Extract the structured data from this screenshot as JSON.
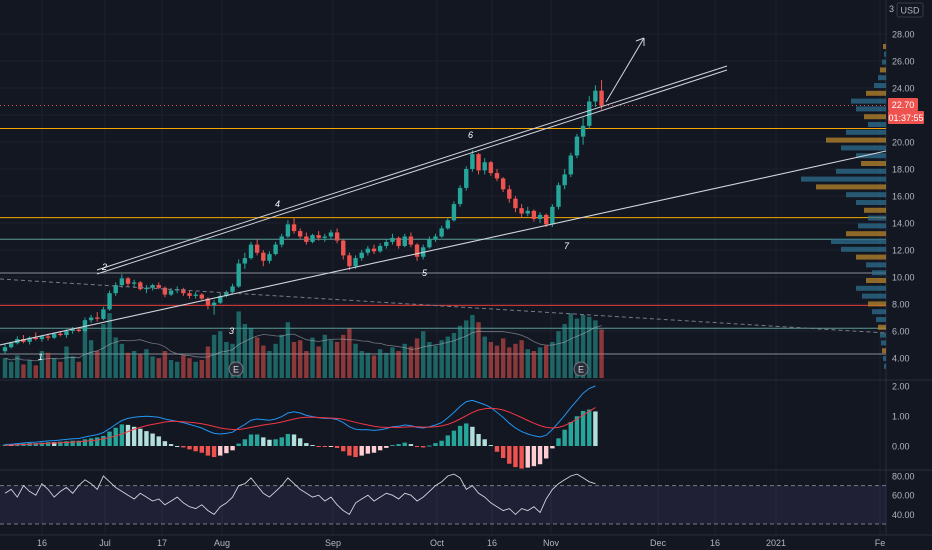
{
  "currency": "USD",
  "price_axis_top_label": "3",
  "price_ticks": [
    "28.00",
    "26.00",
    "24.00",
    "22.00",
    "20.00",
    "18.00",
    "16.00",
    "14.00",
    "12.00",
    "10.00",
    "8.00",
    "6.00",
    "4.00"
  ],
  "price_tick_values": [
    28,
    26,
    24,
    22,
    20,
    18,
    16,
    14,
    12,
    10,
    8,
    6,
    4
  ],
  "macd_ticks": [
    "2.00",
    "1.00",
    "0.00"
  ],
  "macd_tick_values": [
    2,
    1,
    0
  ],
  "rsi_ticks": [
    "80.00",
    "60.00",
    "40.00"
  ],
  "rsi_tick_values": [
    80,
    60,
    40
  ],
  "time_ticks": [
    "16",
    "Jul",
    "17",
    "Aug",
    "Sep",
    "Oct",
    "16",
    "Nov",
    "Dec",
    "16",
    "2021",
    "Fe"
  ],
  "last_price_label": "22.70",
  "countdown_label": "01:37:55",
  "wave_labels": [
    "1",
    "2",
    "3",
    "4",
    "5",
    "6",
    "7"
  ],
  "earnings_marker": "E",
  "colors": {
    "background": "#131722",
    "up": "#26a69a",
    "down": "#ef5350",
    "orange_level": "#f7a600",
    "red_level": "#e53935",
    "macd_line": "#2196f3",
    "signal_line": "#f23645",
    "rsi_band": "#7e57c2"
  },
  "chart_data": {
    "type": "candlestick",
    "y_range": [
      3.2,
      29.4
    ],
    "horizontal_levels": [
      21.0,
      14.4,
      12.8,
      10.3,
      7.9,
      6.2,
      4.3
    ],
    "last_price": 22.7,
    "candles": [
      {
        "o": 4.5,
        "h": 5.0,
        "l": 4.3,
        "c": 4.8
      },
      {
        "o": 4.8,
        "h": 5.2,
        "l": 4.7,
        "c": 5.1
      },
      {
        "o": 5.1,
        "h": 5.6,
        "l": 5.0,
        "c": 5.4
      },
      {
        "o": 5.4,
        "h": 5.7,
        "l": 5.1,
        "c": 5.2
      },
      {
        "o": 5.2,
        "h": 5.6,
        "l": 5.0,
        "c": 5.5
      },
      {
        "o": 5.5,
        "h": 5.9,
        "l": 5.3,
        "c": 5.4
      },
      {
        "o": 5.4,
        "h": 5.7,
        "l": 5.2,
        "c": 5.6
      },
      {
        "o": 5.6,
        "h": 5.8,
        "l": 5.3,
        "c": 5.5
      },
      {
        "o": 5.5,
        "h": 5.9,
        "l": 5.4,
        "c": 5.8
      },
      {
        "o": 5.8,
        "h": 6.0,
        "l": 5.6,
        "c": 5.7
      },
      {
        "o": 5.7,
        "h": 6.1,
        "l": 5.5,
        "c": 6.0
      },
      {
        "o": 6.0,
        "h": 6.3,
        "l": 5.8,
        "c": 6.1
      },
      {
        "o": 6.1,
        "h": 6.3,
        "l": 5.9,
        "c": 6.0
      },
      {
        "o": 6.0,
        "h": 7.0,
        "l": 5.9,
        "c": 6.8
      },
      {
        "o": 6.8,
        "h": 7.2,
        "l": 6.6,
        "c": 7.0
      },
      {
        "o": 7.0,
        "h": 7.4,
        "l": 6.7,
        "c": 6.9
      },
      {
        "o": 6.9,
        "h": 7.8,
        "l": 6.8,
        "c": 7.6
      },
      {
        "o": 7.6,
        "h": 9.0,
        "l": 7.5,
        "c": 8.8
      },
      {
        "o": 8.8,
        "h": 9.6,
        "l": 8.6,
        "c": 9.4
      },
      {
        "o": 9.4,
        "h": 10.2,
        "l": 9.2,
        "c": 9.9
      },
      {
        "o": 9.9,
        "h": 10.0,
        "l": 9.3,
        "c": 9.5
      },
      {
        "o": 9.5,
        "h": 9.8,
        "l": 9.2,
        "c": 9.6
      },
      {
        "o": 9.6,
        "h": 9.7,
        "l": 9.0,
        "c": 9.1
      },
      {
        "o": 9.1,
        "h": 9.4,
        "l": 8.8,
        "c": 9.2
      },
      {
        "o": 9.2,
        "h": 9.5,
        "l": 9.0,
        "c": 9.4
      },
      {
        "o": 9.4,
        "h": 9.6,
        "l": 9.1,
        "c": 9.2
      },
      {
        "o": 9.2,
        "h": 9.3,
        "l": 8.5,
        "c": 8.7
      },
      {
        "o": 8.7,
        "h": 9.2,
        "l": 8.6,
        "c": 9.0
      },
      {
        "o": 9.0,
        "h": 9.3,
        "l": 8.8,
        "c": 9.1
      },
      {
        "o": 9.1,
        "h": 9.2,
        "l": 8.6,
        "c": 8.8
      },
      {
        "o": 8.8,
        "h": 9.0,
        "l": 8.4,
        "c": 8.6
      },
      {
        "o": 8.6,
        "h": 8.9,
        "l": 8.4,
        "c": 8.7
      },
      {
        "o": 8.7,
        "h": 8.8,
        "l": 8.3,
        "c": 8.4
      },
      {
        "o": 8.4,
        "h": 8.5,
        "l": 7.6,
        "c": 7.9
      },
      {
        "o": 7.9,
        "h": 8.3,
        "l": 7.2,
        "c": 8.1
      },
      {
        "o": 8.1,
        "h": 8.8,
        "l": 8.0,
        "c": 8.6
      },
      {
        "o": 8.6,
        "h": 9.0,
        "l": 8.5,
        "c": 8.9
      },
      {
        "o": 8.9,
        "h": 9.5,
        "l": 8.8,
        "c": 9.3
      },
      {
        "o": 9.3,
        "h": 11.3,
        "l": 9.2,
        "c": 11.0
      },
      {
        "o": 11.0,
        "h": 11.8,
        "l": 10.6,
        "c": 11.4
      },
      {
        "o": 11.4,
        "h": 12.6,
        "l": 11.3,
        "c": 12.4
      },
      {
        "o": 12.4,
        "h": 12.8,
        "l": 11.6,
        "c": 11.8
      },
      {
        "o": 11.8,
        "h": 12.0,
        "l": 10.8,
        "c": 11.2
      },
      {
        "o": 11.2,
        "h": 11.9,
        "l": 11.0,
        "c": 11.7
      },
      {
        "o": 11.7,
        "h": 12.6,
        "l": 11.6,
        "c": 12.4
      },
      {
        "o": 12.4,
        "h": 13.2,
        "l": 12.2,
        "c": 13.0
      },
      {
        "o": 13.0,
        "h": 14.2,
        "l": 12.9,
        "c": 13.9
      },
      {
        "o": 13.9,
        "h": 14.4,
        "l": 13.2,
        "c": 13.4
      },
      {
        "o": 13.4,
        "h": 13.6,
        "l": 12.8,
        "c": 13.0
      },
      {
        "o": 13.0,
        "h": 13.3,
        "l": 12.4,
        "c": 12.6
      },
      {
        "o": 12.6,
        "h": 13.2,
        "l": 12.5,
        "c": 13.1
      },
      {
        "o": 13.1,
        "h": 13.4,
        "l": 12.7,
        "c": 12.9
      },
      {
        "o": 12.9,
        "h": 13.2,
        "l": 12.6,
        "c": 13.0
      },
      {
        "o": 13.0,
        "h": 13.5,
        "l": 12.8,
        "c": 13.3
      },
      {
        "o": 13.3,
        "h": 13.6,
        "l": 12.5,
        "c": 12.7
      },
      {
        "o": 12.7,
        "h": 12.8,
        "l": 11.3,
        "c": 11.6
      },
      {
        "o": 11.6,
        "h": 11.8,
        "l": 10.5,
        "c": 10.8
      },
      {
        "o": 10.8,
        "h": 11.6,
        "l": 10.6,
        "c": 11.4
      },
      {
        "o": 11.4,
        "h": 12.0,
        "l": 11.2,
        "c": 11.8
      },
      {
        "o": 11.8,
        "h": 12.3,
        "l": 11.6,
        "c": 12.1
      },
      {
        "o": 12.1,
        "h": 12.4,
        "l": 11.7,
        "c": 11.9
      },
      {
        "o": 11.9,
        "h": 12.5,
        "l": 11.8,
        "c": 12.3
      },
      {
        "o": 12.3,
        "h": 12.8,
        "l": 12.1,
        "c": 12.6
      },
      {
        "o": 12.6,
        "h": 13.2,
        "l": 12.4,
        "c": 12.9
      },
      {
        "o": 12.9,
        "h": 13.0,
        "l": 12.1,
        "c": 12.3
      },
      {
        "o": 12.3,
        "h": 13.2,
        "l": 12.2,
        "c": 13.0
      },
      {
        "o": 13.0,
        "h": 13.3,
        "l": 12.2,
        "c": 12.4
      },
      {
        "o": 12.4,
        "h": 12.5,
        "l": 11.2,
        "c": 11.5
      },
      {
        "o": 11.5,
        "h": 12.4,
        "l": 11.3,
        "c": 12.2
      },
      {
        "o": 12.2,
        "h": 13.0,
        "l": 12.1,
        "c": 12.8
      },
      {
        "o": 12.8,
        "h": 13.2,
        "l": 12.6,
        "c": 13.0
      },
      {
        "o": 13.0,
        "h": 13.8,
        "l": 12.9,
        "c": 13.6
      },
      {
        "o": 13.6,
        "h": 14.4,
        "l": 13.5,
        "c": 14.2
      },
      {
        "o": 14.2,
        "h": 15.6,
        "l": 14.1,
        "c": 15.4
      },
      {
        "o": 15.4,
        "h": 16.8,
        "l": 15.2,
        "c": 16.6
      },
      {
        "o": 16.6,
        "h": 18.2,
        "l": 16.4,
        "c": 18.0
      },
      {
        "o": 18.0,
        "h": 19.4,
        "l": 17.8,
        "c": 19.1
      },
      {
        "o": 19.1,
        "h": 19.2,
        "l": 17.6,
        "c": 17.9
      },
      {
        "o": 17.9,
        "h": 18.8,
        "l": 17.6,
        "c": 18.5
      },
      {
        "o": 18.5,
        "h": 18.6,
        "l": 17.5,
        "c": 17.7
      },
      {
        "o": 17.7,
        "h": 18.0,
        "l": 17.1,
        "c": 17.3
      },
      {
        "o": 17.3,
        "h": 17.4,
        "l": 16.3,
        "c": 16.5
      },
      {
        "o": 16.5,
        "h": 16.8,
        "l": 15.5,
        "c": 15.8
      },
      {
        "o": 15.8,
        "h": 16.0,
        "l": 14.8,
        "c": 15.1
      },
      {
        "o": 15.1,
        "h": 15.4,
        "l": 14.4,
        "c": 14.7
      },
      {
        "o": 14.7,
        "h": 15.2,
        "l": 14.5,
        "c": 14.9
      },
      {
        "o": 14.9,
        "h": 15.0,
        "l": 14.1,
        "c": 14.3
      },
      {
        "o": 14.3,
        "h": 14.8,
        "l": 14.0,
        "c": 14.6
      },
      {
        "o": 14.6,
        "h": 14.7,
        "l": 13.7,
        "c": 13.9
      },
      {
        "o": 13.9,
        "h": 15.4,
        "l": 13.7,
        "c": 15.2
      },
      {
        "o": 15.2,
        "h": 17.0,
        "l": 15.0,
        "c": 16.8
      },
      {
        "o": 16.8,
        "h": 18.0,
        "l": 16.5,
        "c": 17.6
      },
      {
        "o": 17.6,
        "h": 19.2,
        "l": 17.4,
        "c": 19.0
      },
      {
        "o": 19.0,
        "h": 20.6,
        "l": 18.8,
        "c": 20.4
      },
      {
        "o": 20.4,
        "h": 21.8,
        "l": 19.8,
        "c": 21.2
      },
      {
        "o": 21.2,
        "h": 23.4,
        "l": 21.0,
        "c": 23.0
      },
      {
        "o": 23.0,
        "h": 24.2,
        "l": 22.6,
        "c": 23.8
      },
      {
        "o": 23.8,
        "h": 24.6,
        "l": 22.4,
        "c": 22.7
      }
    ],
    "volume": [
      22,
      18,
      25,
      15,
      20,
      14,
      30,
      28,
      22,
      18,
      35,
      24,
      18,
      55,
      42,
      30,
      60,
      72,
      45,
      38,
      28,
      30,
      26,
      32,
      24,
      22,
      30,
      20,
      18,
      25,
      22,
      18,
      20,
      35,
      48,
      52,
      40,
      38,
      74,
      60,
      55,
      45,
      36,
      30,
      38,
      48,
      62,
      40,
      42,
      30,
      45,
      35,
      48,
      42,
      40,
      48,
      55,
      38,
      30,
      28,
      25,
      32,
      28,
      34,
      30,
      38,
      35,
      44,
      52,
      40,
      36,
      42,
      46,
      50,
      58,
      64,
      70,
      62,
      46,
      40,
      36,
      44,
      34,
      38,
      42,
      32,
      30,
      34,
      36,
      40,
      52,
      60,
      72,
      66,
      70,
      68,
      64,
      54
    ],
    "macd": [
      0.05,
      0.06,
      0.08,
      0.1,
      0.12,
      0.13,
      0.15,
      0.17,
      0.18,
      0.2,
      0.22,
      0.24,
      0.25,
      0.3,
      0.34,
      0.38,
      0.45,
      0.58,
      0.72,
      0.85,
      0.92,
      0.96,
      0.98,
      0.99,
      0.98,
      0.96,
      0.9,
      0.86,
      0.82,
      0.78,
      0.72,
      0.66,
      0.6,
      0.5,
      0.42,
      0.4,
      0.42,
      0.46,
      0.6,
      0.72,
      0.86,
      0.9,
      0.88,
      0.86,
      0.9,
      0.98,
      1.1,
      1.14,
      1.1,
      1.02,
      0.98,
      0.94,
      0.92,
      0.92,
      0.88,
      0.78,
      0.64,
      0.56,
      0.54,
      0.54,
      0.52,
      0.54,
      0.58,
      0.64,
      0.66,
      0.7,
      0.68,
      0.62,
      0.6,
      0.64,
      0.7,
      0.78,
      0.94,
      1.12,
      1.32,
      1.48,
      1.52,
      1.45,
      1.38,
      1.28,
      1.12,
      0.95,
      0.76,
      0.6,
      0.48,
      0.4,
      0.34,
      0.3,
      0.36,
      0.55,
      0.78,
      1.02,
      1.28,
      1.52,
      1.76,
      1.92,
      2.0
    ],
    "signal": [
      0.02,
      0.03,
      0.04,
      0.05,
      0.06,
      0.07,
      0.08,
      0.09,
      0.1,
      0.11,
      0.12,
      0.13,
      0.14,
      0.16,
      0.18,
      0.2,
      0.24,
      0.28,
      0.34,
      0.4,
      0.48,
      0.56,
      0.62,
      0.68,
      0.72,
      0.76,
      0.8,
      0.82,
      0.82,
      0.81,
      0.79,
      0.77,
      0.74,
      0.7,
      0.65,
      0.6,
      0.57,
      0.55,
      0.55,
      0.58,
      0.62,
      0.66,
      0.7,
      0.73,
      0.76,
      0.8,
      0.85,
      0.9,
      0.94,
      0.96,
      0.96,
      0.95,
      0.94,
      0.93,
      0.92,
      0.89,
      0.84,
      0.79,
      0.74,
      0.7,
      0.66,
      0.63,
      0.62,
      0.62,
      0.62,
      0.63,
      0.64,
      0.64,
      0.63,
      0.63,
      0.64,
      0.67,
      0.72,
      0.8,
      0.9,
      1.01,
      1.12,
      1.2,
      1.24,
      1.26,
      1.24,
      1.2,
      1.13,
      1.04,
      0.95,
      0.85,
      0.76,
      0.68,
      0.62,
      0.6,
      0.62,
      0.68,
      0.78,
      0.9,
      1.03,
      1.16,
      1.28
    ],
    "rsi": [
      62,
      66,
      58,
      70,
      64,
      60,
      72,
      66,
      58,
      64,
      68,
      62,
      70,
      76,
      72,
      66,
      80,
      74,
      68,
      64,
      60,
      56,
      62,
      58,
      54,
      56,
      50,
      54,
      58,
      52,
      48,
      46,
      50,
      44,
      40,
      48,
      52,
      58,
      70,
      72,
      78,
      70,
      62,
      58,
      64,
      70,
      78,
      72,
      66,
      62,
      58,
      60,
      54,
      58,
      50,
      44,
      40,
      52,
      56,
      60,
      54,
      58,
      62,
      60,
      56,
      62,
      60,
      54,
      58,
      64,
      70,
      74,
      80,
      82,
      78,
      66,
      70,
      62,
      58,
      52,
      48,
      44,
      46,
      40,
      46,
      44,
      48,
      42,
      56,
      66,
      72,
      76,
      80,
      82,
      78,
      74,
      72
    ],
    "rsi_band": [
      30,
      70
    ]
  }
}
